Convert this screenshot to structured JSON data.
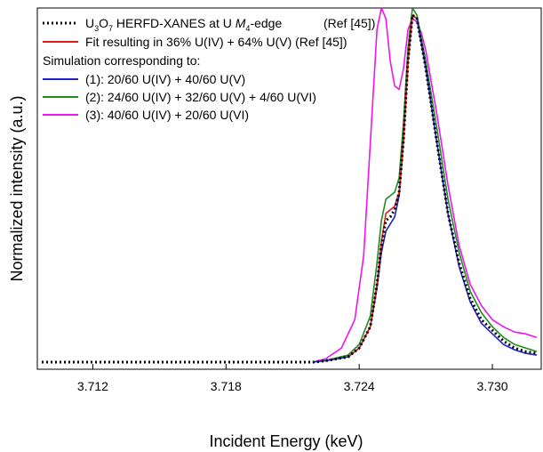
{
  "chart_data": {
    "type": "line",
    "xlabel": "Incident Energy (keV)",
    "ylabel": "Normalized intensity (a.u.)",
    "xlim": [
      3.7095,
      3.7322
    ],
    "ylim": [
      -0.02,
      1.0
    ],
    "x_ticks": [
      "3.712",
      "3.718",
      "3.724",
      "3.730"
    ],
    "x_tick_values": [
      3.712,
      3.718,
      3.724,
      3.73
    ],
    "y_ticks_shown": false,
    "grid": false,
    "legend_position": "top-left",
    "legend": {
      "simulation_header": "Simulation corresponding to:",
      "entries": [
        {
          "key": "s0",
          "label": ""
        },
        {
          "key": "s1",
          "label": "Fit resulting in 36% U(IV) + 64% U(V) (Ref [45])"
        },
        {
          "key": "s2",
          "label": "(1): 20/60 U(IV) + 40/60 U(V)"
        },
        {
          "key": "s3",
          "label": "(2): 24/60 U(IV) + 32/60 U(V) + 4/60 U(VI)"
        },
        {
          "key": "s4",
          "label": "(3): 40/60 U(IV) + 20/60 U(VI)"
        }
      ],
      "first_entry_parts": {
        "u": "U",
        "sub3": "3",
        "o": "O",
        "sub7": "7",
        "mid": " HERFD-XANES at U ",
        "m": "M",
        "sub4": "4",
        "end": "-edge",
        "ref": "(Ref [45])"
      }
    },
    "series": [
      {
        "name": "U3O7 HERFD-XANES at U M4-edge (Ref [45])",
        "color": "#000000",
        "dash": "dotted",
        "x": [
          3.7097,
          3.712,
          3.716,
          3.72,
          3.722,
          3.7225,
          3.7235,
          3.724,
          3.7245,
          3.7248,
          3.725,
          3.7252,
          3.7254,
          3.7256,
          3.7258,
          3.726,
          3.7262,
          3.7264,
          3.7266,
          3.727,
          3.7275,
          3.728,
          3.7285,
          3.729,
          3.7295,
          3.73,
          3.7305,
          3.731,
          3.7315,
          3.732
        ],
        "y": [
          0.0,
          0.0,
          0.0,
          0.0,
          0.0,
          0.004,
          0.015,
          0.04,
          0.1,
          0.22,
          0.33,
          0.4,
          0.41,
          0.43,
          0.48,
          0.63,
          0.85,
          0.98,
          0.97,
          0.83,
          0.62,
          0.42,
          0.28,
          0.18,
          0.12,
          0.09,
          0.06,
          0.04,
          0.03,
          0.025
        ]
      },
      {
        "name": "Fit resulting in 36% U(IV) + 64% U(V) (Ref [45])",
        "color": "#e01b1b",
        "dash": "solid",
        "x": [
          3.7235,
          3.724,
          3.7245,
          3.7248,
          3.725,
          3.7252,
          3.7254,
          3.7256,
          3.7258,
          3.726,
          3.7262,
          3.7264,
          3.7266
        ],
        "y": [
          0.015,
          0.04,
          0.1,
          0.22,
          0.34,
          0.42,
          0.43,
          0.44,
          0.48,
          0.63,
          0.85,
          0.98,
          0.97
        ]
      },
      {
        "name": "(1): 20/60 U(IV) + 40/60 U(V)",
        "color": "#1f23c9",
        "dash": "solid",
        "x": [
          3.7219,
          3.7225,
          3.7235,
          3.724,
          3.7245,
          3.7248,
          3.725,
          3.7252,
          3.7254,
          3.7256,
          3.7258,
          3.726,
          3.7262,
          3.7264,
          3.7266,
          3.727,
          3.7275,
          3.728,
          3.7285,
          3.729,
          3.7295,
          3.73,
          3.7305,
          3.731,
          3.7315,
          3.732
        ],
        "y": [
          0.0,
          0.004,
          0.015,
          0.04,
          0.1,
          0.21,
          0.31,
          0.37,
          0.39,
          0.41,
          0.47,
          0.63,
          0.85,
          0.98,
          0.97,
          0.83,
          0.62,
          0.42,
          0.27,
          0.17,
          0.11,
          0.08,
          0.05,
          0.035,
          0.025,
          0.02
        ]
      },
      {
        "name": "(2): 24/60 U(IV) + 32/60 U(V) + 4/60 U(VI)",
        "color": "#1e8c1e",
        "dash": "solid",
        "x": [
          3.7219,
          3.7225,
          3.7235,
          3.724,
          3.7245,
          3.7248,
          3.725,
          3.7252,
          3.7254,
          3.7256,
          3.7258,
          3.726,
          3.7262,
          3.7264,
          3.7266,
          3.727,
          3.7275,
          3.728,
          3.7285,
          3.729,
          3.7295,
          3.73,
          3.7305,
          3.731,
          3.7315,
          3.732
        ],
        "y": [
          0.0,
          0.005,
          0.02,
          0.05,
          0.13,
          0.28,
          0.4,
          0.46,
          0.47,
          0.48,
          0.52,
          0.68,
          0.89,
          1.0,
          0.98,
          0.85,
          0.66,
          0.46,
          0.31,
          0.2,
          0.14,
          0.1,
          0.07,
          0.05,
          0.04,
          0.03
        ]
      },
      {
        "name": "(3): 40/60 U(IV) + 20/60 U(VI)",
        "color": "#f015ef",
        "dash": "solid",
        "x": [
          3.7219,
          3.7225,
          3.7232,
          3.7238,
          3.7242,
          3.7245,
          3.7248,
          3.725,
          3.7252,
          3.7254,
          3.7256,
          3.7258,
          3.726,
          3.7262,
          3.7264,
          3.7266,
          3.7268,
          3.727,
          3.7275,
          3.728,
          3.7285,
          3.729,
          3.7295,
          3.73,
          3.7305,
          3.731,
          3.7315,
          3.732
        ],
        "y": [
          0.0,
          0.01,
          0.04,
          0.12,
          0.3,
          0.62,
          0.94,
          1.0,
          0.97,
          0.85,
          0.78,
          0.77,
          0.83,
          0.94,
          0.97,
          0.96,
          0.93,
          0.88,
          0.7,
          0.5,
          0.33,
          0.22,
          0.16,
          0.12,
          0.1,
          0.085,
          0.08,
          0.07
        ]
      }
    ]
  }
}
